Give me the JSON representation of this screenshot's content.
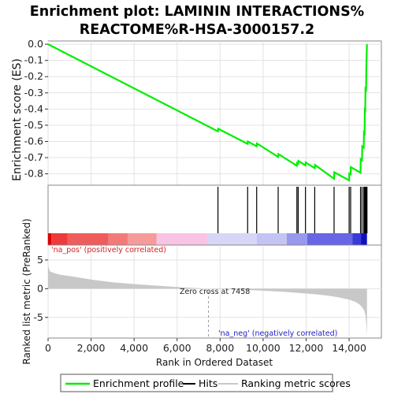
{
  "chart_data": {
    "type": "line",
    "title": "Enrichment plot: LAMININ INTERACTIONS%",
    "title_line2": "REACTOME%R-HSA-3000157.2",
    "xlabel": "Rank in Ordered Dataset",
    "xlim": [
      0,
      15500
    ],
    "x_ticks": [
      0,
      2000,
      4000,
      6000,
      8000,
      10000,
      12000,
      14000
    ],
    "x_tick_labels": [
      "0",
      "2,000",
      "4,000",
      "6,000",
      "8,000",
      "10,000",
      "12,000",
      "14,000"
    ],
    "es_panel": {
      "ylabel": "Enrichment score (ES)",
      "ylim": [
        -0.87,
        0.02
      ],
      "y_ticks": [
        0.0,
        -0.1,
        -0.2,
        -0.3,
        -0.4,
        -0.5,
        -0.6,
        -0.7,
        -0.8
      ],
      "y_tick_labels": [
        "0.0",
        "-0.1",
        "-0.2",
        "-0.3",
        "-0.4",
        "-0.5",
        "-0.6",
        "-0.7",
        "-0.8"
      ],
      "color": "#00ee00",
      "series": [
        {
          "name": "Enrichment profile",
          "x": [
            0,
            7900,
            7910,
            9280,
            9290,
            9700,
            9710,
            10700,
            10710,
            11570,
            11580,
            11630,
            11640,
            11970,
            11980,
            12400,
            12410,
            13300,
            13310,
            14000,
            14010,
            14070,
            14080,
            14530,
            14540,
            14600,
            14610,
            14680,
            14690,
            14720,
            14730,
            14750,
            14760,
            14790,
            14800,
            14830
          ],
          "y": [
            0.0,
            -0.538,
            -0.522,
            -0.615,
            -0.6,
            -0.63,
            -0.612,
            -0.696,
            -0.678,
            -0.75,
            -0.733,
            -0.738,
            -0.72,
            -0.748,
            -0.73,
            -0.765,
            -0.745,
            -0.83,
            -0.79,
            -0.84,
            -0.798,
            -0.803,
            -0.758,
            -0.793,
            -0.71,
            -0.716,
            -0.63,
            -0.638,
            -0.545,
            -0.55,
            -0.405,
            -0.408,
            -0.275,
            -0.28,
            -0.14,
            0.0
          ]
        }
      ]
    },
    "hits_panel": {
      "hit_positions": [
        7900,
        9280,
        9700,
        10700,
        11570,
        11630,
        11970,
        12400,
        13300,
        14000,
        14070,
        14530,
        14600,
        14680,
        14720,
        14750,
        14790,
        14800,
        14830
      ],
      "color_bar": [
        {
          "from": 0,
          "to": 150,
          "color": "#dd0000"
        },
        {
          "from": 150,
          "to": 900,
          "color": "#ee3a3a"
        },
        {
          "from": 900,
          "to": 2800,
          "color": "#f05c5c"
        },
        {
          "from": 2800,
          "to": 3700,
          "color": "#f47a7a"
        },
        {
          "from": 3700,
          "to": 5050,
          "color": "#f79a9a"
        },
        {
          "from": 5050,
          "to": 7400,
          "color": "#f8c4e4"
        },
        {
          "from": 7400,
          "to": 9700,
          "color": "#d6d6f6"
        },
        {
          "from": 9700,
          "to": 11100,
          "color": "#c4c4f4"
        },
        {
          "from": 11100,
          "to": 12050,
          "color": "#9898ee"
        },
        {
          "from": 12050,
          "to": 14150,
          "color": "#6666e6"
        },
        {
          "from": 14150,
          "to": 14550,
          "color": "#3a3ad8"
        },
        {
          "from": 14550,
          "to": 14830,
          "color": "#1010c0"
        }
      ]
    },
    "rank_panel": {
      "ylabel": "Ranked list metric (PreRanked)",
      "ylim": [
        -8.6,
        7.6
      ],
      "y_ticks": [
        -5,
        0,
        5
      ],
      "y_tick_labels": [
        "-5",
        "0",
        "5"
      ],
      "metric_color": "#c8c8c8",
      "metric_points": {
        "x": [
          0,
          30,
          100,
          300,
          600,
          1000,
          2000,
          3000,
          4000,
          5000,
          6000,
          7458,
          9000,
          10000,
          11000,
          12000,
          12500,
          13000,
          13500,
          14000,
          14300,
          14500,
          14600,
          14700,
          14760,
          14800,
          14830
        ],
        "y": [
          4.3,
          3.6,
          3.0,
          2.7,
          2.4,
          2.2,
          1.6,
          1.1,
          0.8,
          0.55,
          0.3,
          0.0,
          -0.18,
          -0.35,
          -0.55,
          -0.85,
          -1.0,
          -1.2,
          -1.5,
          -1.9,
          -2.3,
          -2.8,
          -3.2,
          -3.8,
          -4.6,
          -6.2,
          -8.2
        ]
      },
      "label_pos": "'na_pos' (positively correlated)",
      "label_neg": "'na_neg' (negatively correlated)",
      "zero_cross_label": "Zero cross at 7458",
      "zero_cross_x": 7458
    },
    "legend": {
      "placement": "bottom",
      "items": [
        {
          "label": "Enrichment profile",
          "color": "#00ee00"
        },
        {
          "label": "Hits",
          "color": "#000000"
        },
        {
          "label": "Ranking metric scores",
          "color": "#c8c8c8"
        }
      ]
    }
  }
}
